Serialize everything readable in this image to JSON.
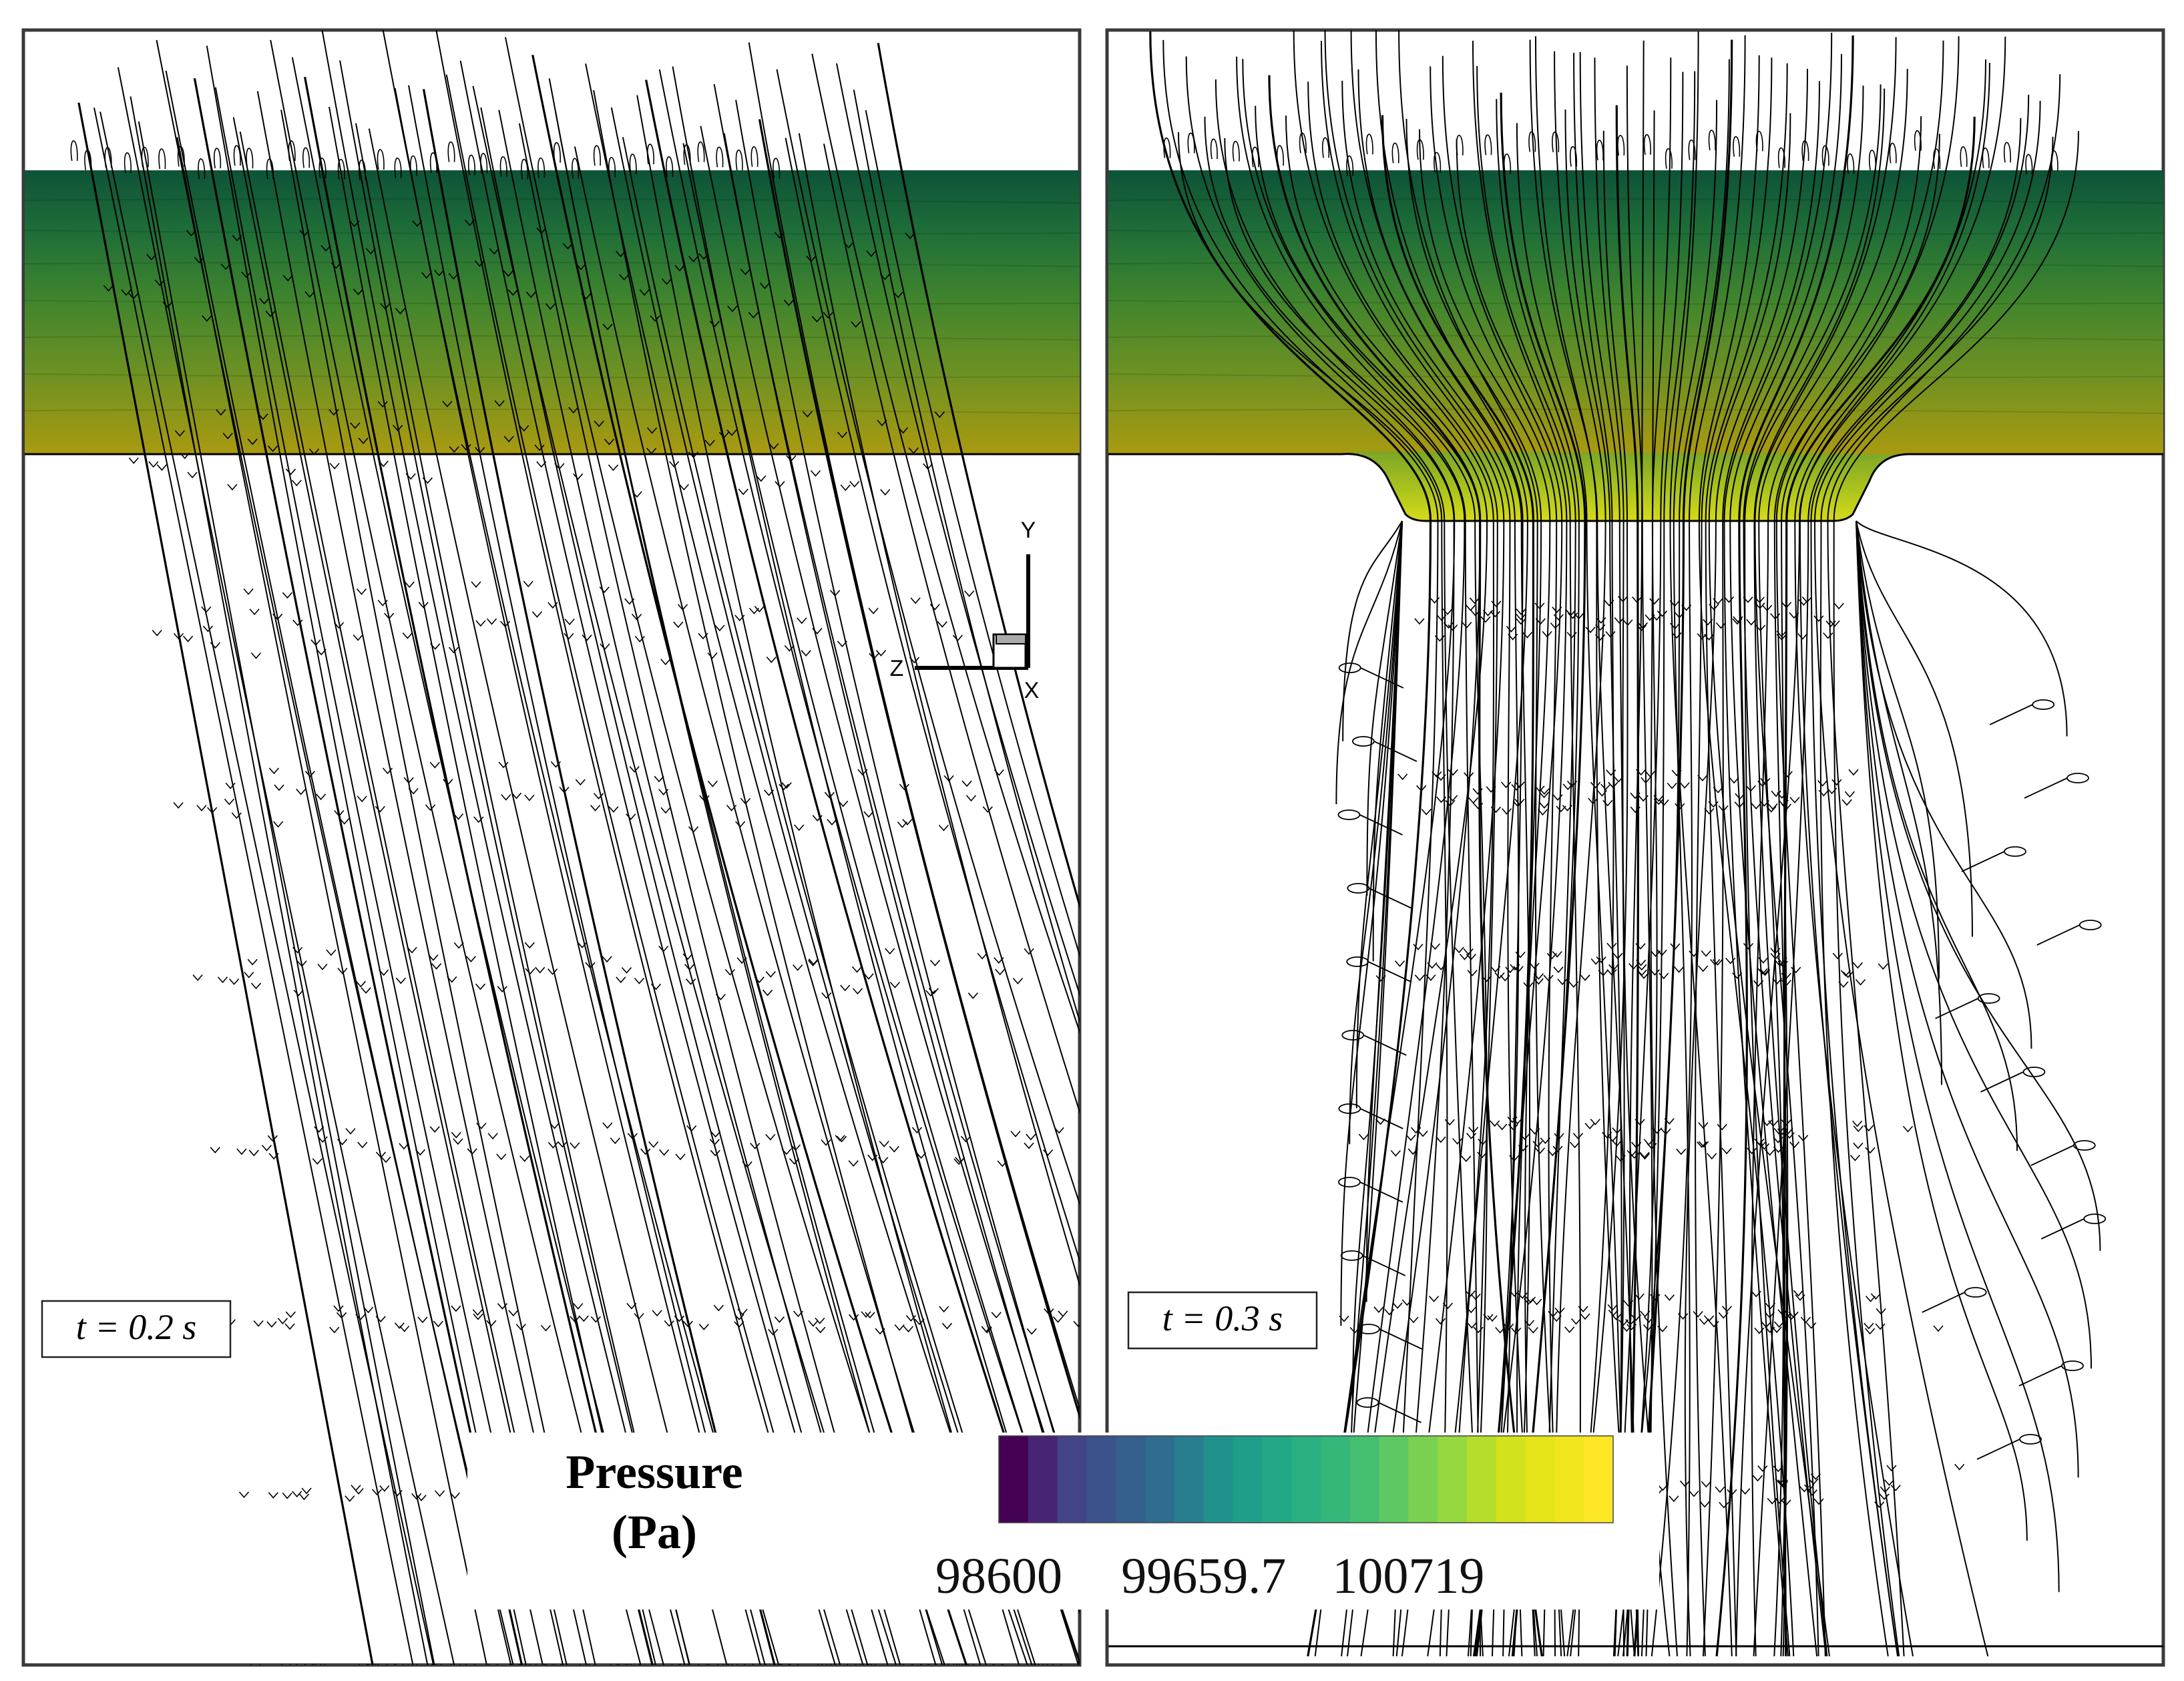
{
  "panels": [
    {
      "id": "left",
      "time_label": "t = 0.2 s"
    },
    {
      "id": "right",
      "time_label": "t = 0.3 s"
    }
  ],
  "axis_triad": {
    "y": "Y",
    "z": "Z",
    "x": "X"
  },
  "colorbar": {
    "title_line1": "Pressure",
    "title_line2": "(Pa)",
    "min": 98600,
    "max": 101778,
    "tick_labels": [
      "98600",
      "99659.7",
      "100719"
    ],
    "tick_values": [
      98600,
      99659.7,
      100719
    ],
    "levels": 21,
    "colors": [
      "#440154",
      "#482475",
      "#414487",
      "#3b528b",
      "#355f8d",
      "#2f6c8e",
      "#287d8e",
      "#21918c",
      "#1f9e89",
      "#22a884",
      "#2ab07f",
      "#35b779",
      "#44bf70",
      "#5ec962",
      "#7ad151",
      "#95d840",
      "#b5de2b",
      "#d2e21b",
      "#e5e419",
      "#f1e51d",
      "#fde725"
    ]
  },
  "pressure_band_colors": {
    "top": "#0f5a3c",
    "upper": "#2a7b36",
    "middle": "#4f8a2a",
    "lower": "#7a9422",
    "bottom": "#a89a12",
    "bulge": "#d2d818"
  },
  "line_color": "#000000"
}
